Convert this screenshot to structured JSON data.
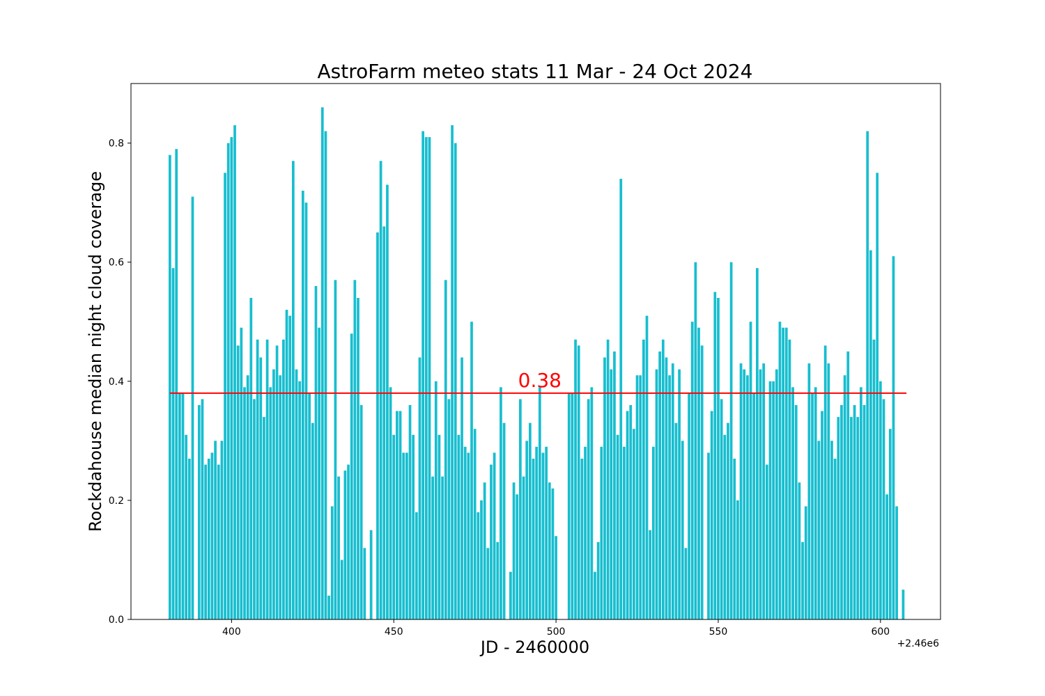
{
  "chart_data": {
    "type": "bar",
    "title": "AstroFarm meteo stats 11 Mar - 24 Oct 2024",
    "xlabel": "JD - 2460000",
    "ylabel": "Rockdahouse median night cloud coverage",
    "x_offset_label": "+2.46e6",
    "xlim": [
      369,
      618.5
    ],
    "ylim": [
      0,
      0.9
    ],
    "xticks": [
      400,
      450,
      500,
      550,
      600
    ],
    "yticks": [
      0.0,
      0.2,
      0.4,
      0.6,
      0.8
    ],
    "xtick_labels": [
      "400",
      "450",
      "500",
      "550",
      "600"
    ],
    "ytick_labels": [
      "0.0",
      "0.2",
      "0.4",
      "0.6",
      "0.8"
    ],
    "grid": false,
    "bar_color": "#17becf",
    "mean_line": {
      "value": 0.38,
      "label": "0.38",
      "color": "#ff0000",
      "x_start": 381,
      "x_end": 608
    },
    "x": [
      381,
      382,
      383,
      384,
      385,
      386,
      387,
      388,
      389,
      390,
      391,
      392,
      393,
      394,
      395,
      396,
      397,
      398,
      399,
      400,
      401,
      402,
      403,
      404,
      405,
      406,
      407,
      408,
      409,
      410,
      411,
      412,
      413,
      414,
      415,
      416,
      417,
      418,
      419,
      420,
      421,
      422,
      423,
      424,
      425,
      426,
      427,
      428,
      429,
      430,
      431,
      432,
      433,
      434,
      435,
      436,
      437,
      438,
      439,
      440,
      441,
      442,
      443,
      444,
      445,
      446,
      447,
      448,
      449,
      450,
      451,
      452,
      453,
      454,
      455,
      456,
      457,
      458,
      459,
      460,
      461,
      462,
      463,
      464,
      465,
      466,
      467,
      468,
      469,
      470,
      471,
      472,
      473,
      474,
      475,
      476,
      477,
      478,
      479,
      480,
      481,
      482,
      483,
      484,
      485,
      486,
      487,
      488,
      489,
      490,
      491,
      492,
      493,
      494,
      495,
      496,
      497,
      498,
      499,
      500,
      501,
      502,
      503,
      504,
      505,
      506,
      507,
      508,
      509,
      510,
      511,
      512,
      513,
      514,
      515,
      516,
      517,
      518,
      519,
      520,
      521,
      522,
      523,
      524,
      525,
      526,
      527,
      528,
      529,
      530,
      531,
      532,
      533,
      534,
      535,
      536,
      537,
      538,
      539,
      540,
      541,
      542,
      543,
      544,
      545,
      546,
      547,
      548,
      549,
      550,
      551,
      552,
      553,
      554,
      555,
      556,
      557,
      558,
      559,
      560,
      561,
      562,
      563,
      564,
      565,
      566,
      567,
      568,
      569,
      570,
      571,
      572,
      573,
      574,
      575,
      576,
      577,
      578,
      579,
      580,
      581,
      582,
      583,
      584,
      585,
      586,
      587,
      588,
      589,
      590,
      591,
      592,
      593,
      594,
      595,
      596,
      597,
      598,
      599,
      600,
      601,
      602,
      603,
      604,
      605,
      606,
      607
    ],
    "values": [
      0.78,
      0.59,
      0.79,
      0.38,
      0.38,
      0.31,
      0.27,
      0.71,
      0,
      0.36,
      0.37,
      0.26,
      0.27,
      0.28,
      0.3,
      0.26,
      0.3,
      0.75,
      0.8,
      0.81,
      0.83,
      0.46,
      0.49,
      0.39,
      0.41,
      0.54,
      0.37,
      0.47,
      0.44,
      0.34,
      0.47,
      0.39,
      0.42,
      0.46,
      0.41,
      0.47,
      0.52,
      0.51,
      0.77,
      0.42,
      0.4,
      0.72,
      0.7,
      0.38,
      0.33,
      0.56,
      0.49,
      0.86,
      0.82,
      0.04,
      0.19,
      0.57,
      0.24,
      0.1,
      0.25,
      0.26,
      0.48,
      0.57,
      0.54,
      0.36,
      0.12,
      0,
      0.15,
      0,
      0.65,
      0.77,
      0.66,
      0.73,
      0.39,
      0.31,
      0.35,
      0.35,
      0.28,
      0.28,
      0.36,
      0.31,
      0.18,
      0.44,
      0.82,
      0.81,
      0.81,
      0.24,
      0.4,
      0.31,
      0.24,
      0.57,
      0.37,
      0.83,
      0.8,
      0.31,
      0.44,
      0.29,
      0.28,
      0.5,
      0.32,
      0.18,
      0.2,
      0.23,
      0.12,
      0.26,
      0.28,
      0.13,
      0.39,
      0.33,
      0,
      0.08,
      0.23,
      0.21,
      0.37,
      0.24,
      0.3,
      0.33,
      0.27,
      0.29,
      0.39,
      0.28,
      0.29,
      0.23,
      0.22,
      0.14,
      0,
      0,
      0,
      0.38,
      0.38,
      0.47,
      0.46,
      0.27,
      0.29,
      0.37,
      0.39,
      0.08,
      0.13,
      0.29,
      0.44,
      0.47,
      0.42,
      0.45,
      0.31,
      0.74,
      0.29,
      0.35,
      0.36,
      0.32,
      0.41,
      0.41,
      0.47,
      0.51,
      0.15,
      0.29,
      0.42,
      0.45,
      0.47,
      0.44,
      0.41,
      0.43,
      0.33,
      0.42,
      0.3,
      0.12,
      0.38,
      0.5,
      0.6,
      0.49,
      0.46,
      0,
      0.28,
      0.35,
      0.55,
      0.54,
      0.37,
      0.31,
      0.33,
      0.6,
      0.27,
      0.2,
      0.43,
      0.42,
      0.41,
      0.5,
      0.38,
      0.59,
      0.42,
      0.43,
      0.26,
      0.4,
      0.4,
      0.42,
      0.5,
      0.49,
      0.49,
      0.47,
      0.39,
      0.36,
      0.23,
      0.13,
      0.19,
      0.43,
      0.38,
      0.39,
      0.3,
      0.35,
      0.46,
      0.43,
      0.3,
      0.27,
      0.34,
      0.36,
      0.41,
      0.45,
      0.34,
      0.36,
      0.34,
      0.39,
      0.36,
      0.82,
      0.62,
      0.47,
      0.75,
      0.4,
      0.37,
      0.21,
      0.32,
      0.61,
      0.19,
      0,
      0.05
    ]
  }
}
